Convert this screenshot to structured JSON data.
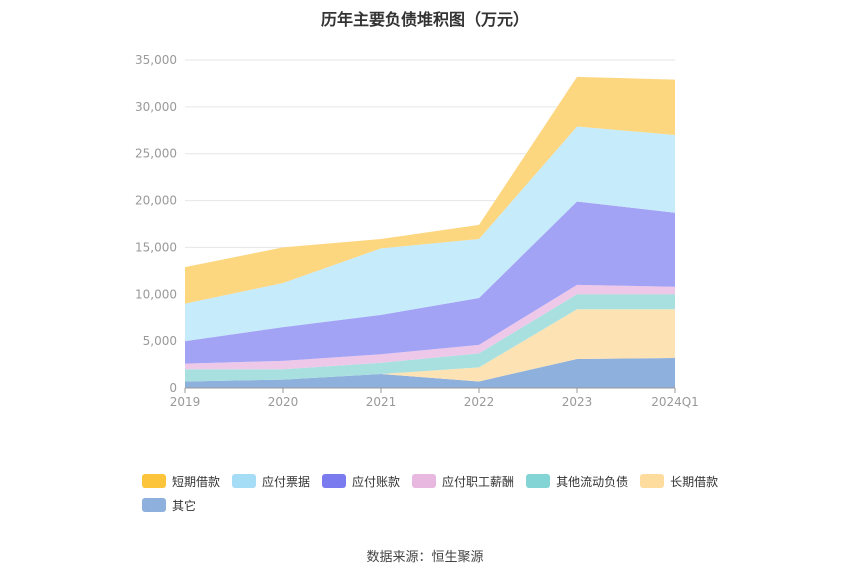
{
  "chart_data": {
    "type": "area",
    "stacked": true,
    "title": "历年主要负债堆积图（万元）",
    "categories": [
      "2019",
      "2020",
      "2021",
      "2022",
      "2023",
      "2024Q1"
    ],
    "ylim": [
      0,
      35000
    ],
    "yticks": [
      "0",
      "5,000",
      "10,000",
      "15,000",
      "20,000",
      "25,000",
      "30,000",
      "35,000"
    ],
    "grid": true,
    "legend_position": "bottom-left",
    "series": [
      {
        "name": "其它",
        "color": "#8EB0DC",
        "legend_color": "#8EB0DC",
        "values": [
          700,
          900,
          1500,
          700,
          3100,
          3200
        ]
      },
      {
        "name": "长期借款",
        "color": "#FDE3B4",
        "legend_color": "#FDDC9E",
        "values": [
          0,
          0,
          0,
          1500,
          5300,
          5200
        ]
      },
      {
        "name": "其他流动负债",
        "color": "#A8E0E0",
        "legend_color": "#83D4D4",
        "values": [
          1300,
          1100,
          1200,
          1500,
          1600,
          1600
        ]
      },
      {
        "name": "应付职工薪酬",
        "color": "#EEC8E8",
        "legend_color": "#E8B8E0",
        "values": [
          600,
          900,
          900,
          900,
          1000,
          800
        ]
      },
      {
        "name": "应付账款",
        "color": "#A3A3F6",
        "legend_color": "#7B7BF0",
        "values": [
          2400,
          3600,
          4200,
          5000,
          8900,
          7900
        ]
      },
      {
        "name": "应付票据",
        "color": "#C6EBFB",
        "legend_color": "#A6DDF6",
        "values": [
          4000,
          4700,
          7100,
          6300,
          8000,
          8300
        ]
      },
      {
        "name": "短期借款",
        "color": "#FDD680",
        "legend_color": "#FBC43A",
        "values": [
          3900,
          3800,
          1000,
          1500,
          5300,
          5900
        ]
      }
    ],
    "legend_order": [
      "短期借款",
      "应付票据",
      "应付账款",
      "应付职工薪酬",
      "其他流动负债",
      "长期借款",
      "其它"
    ]
  },
  "source_note": "数据来源：恒生聚源"
}
